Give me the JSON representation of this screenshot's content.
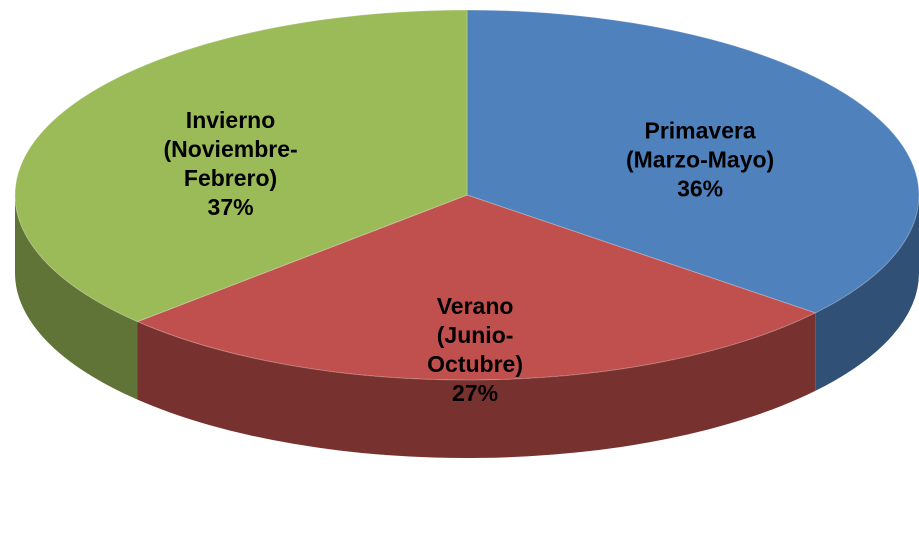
{
  "chart_data": {
    "type": "pie",
    "categories": [
      "Primavera\n(Marzo-Mayo)",
      "Verano\n(Junio-\nOctubre)",
      "Invierno\n(Noviembre-\nFebrero)"
    ],
    "values": [
      36,
      27,
      37
    ],
    "value_labels": [
      "36%",
      "27%",
      "37%"
    ],
    "colors": [
      "#4f81bd",
      "#c0504d",
      "#9bbb59"
    ]
  }
}
